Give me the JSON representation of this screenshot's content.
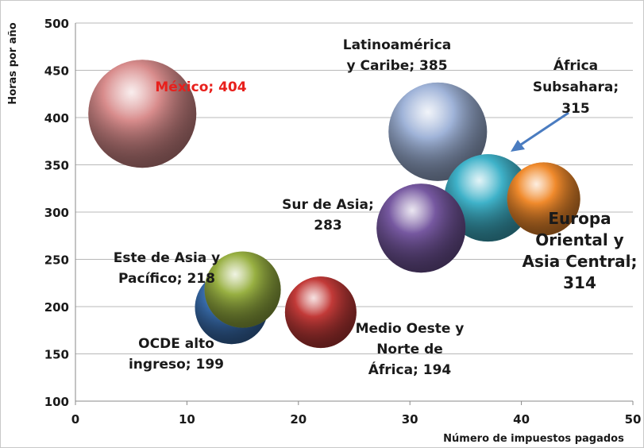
{
  "chart_data": {
    "type": "bubble",
    "x_label": "Número de impuestos pagados",
    "y_label": "Horas por año",
    "xlim": [
      0,
      50
    ],
    "xticks": [
      0,
      10,
      20,
      30,
      40,
      50
    ],
    "ylim": [
      100,
      500
    ],
    "yticks": [
      100,
      150,
      200,
      250,
      300,
      350,
      400,
      450,
      500
    ],
    "grid": true,
    "points": [
      {
        "name": "México",
        "x": 6,
        "y": 404,
        "size": 68,
        "color": "#d88c8c",
        "label": [
          "México; 404"
        ],
        "label_color": "#e8201c"
      },
      {
        "name": "Latinoamérica y Caribe",
        "x": 32.5,
        "y": 385,
        "size": 62,
        "color": "#9fb3d8",
        "label": [
          "Latinoamérica",
          "y Caribe; 385"
        ],
        "label_color": "#1a1a1a"
      },
      {
        "name": "África Subsahara",
        "x": 37,
        "y": 315,
        "size": 55,
        "color": "#3fb2c9",
        "label": [
          "África",
          "Subsahara;",
          "315"
        ],
        "label_color": "#1a1a1a"
      },
      {
        "name": "Europa Oriental y Asia Central",
        "x": 42,
        "y": 314,
        "size": 46,
        "color": "#f08a2c",
        "label": [
          "Europa",
          "Oriental y",
          "Asia Central;",
          "314"
        ],
        "label_color": "#1a1a1a"
      },
      {
        "name": "Sur de Asia",
        "x": 31,
        "y": 283,
        "size": 56,
        "color": "#7658a0",
        "label": [
          "Sur de Asia;",
          "283"
        ],
        "label_color": "#1a1a1a"
      },
      {
        "name": "OCDE alto ingreso",
        "x": 14,
        "y": 199,
        "size": 46,
        "color": "#3a6fb0",
        "label": [
          "OCDE alto",
          "ingreso; 199"
        ],
        "label_color": "#1a1a1a"
      },
      {
        "name": "Este de Asia y Pacífico",
        "x": 15,
        "y": 218,
        "size": 48,
        "color": "#98b042",
        "label": [
          "Este de Asia y",
          "Pacífico; 218"
        ],
        "label_color": "#1a1a1a"
      },
      {
        "name": "Medio Oeste y Norte de África",
        "x": 22,
        "y": 194,
        "size": 45,
        "color": "#c23a38",
        "label": [
          "Medio Oeste y",
          "Norte de",
          "África; 194"
        ],
        "label_color": "#1a1a1a"
      }
    ]
  }
}
